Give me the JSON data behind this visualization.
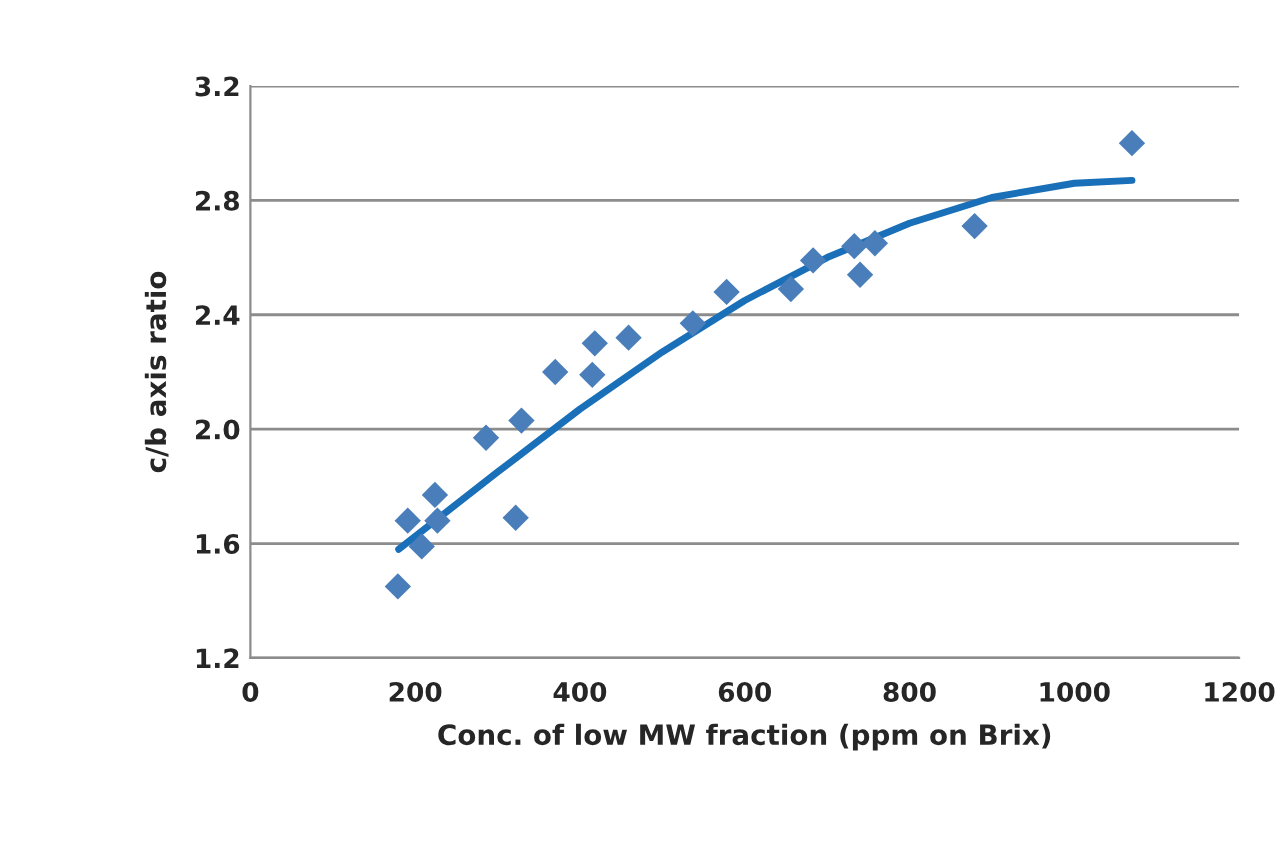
{
  "chart_data": {
    "type": "scatter",
    "xlabel": "Conc. of low MW fraction (ppm on Brix)",
    "ylabel": "c/b axis ratio",
    "series": [
      {
        "color": "#4a7ebb",
        "marker": "diamond",
        "x": [
          179,
          191,
          208,
          224,
          227,
          286,
          322,
          329,
          370,
          418,
          415,
          459,
          537,
          578,
          656,
          683,
          740,
          733,
          758,
          879,
          1070
        ],
        "values": [
          1.45,
          1.68,
          1.59,
          1.77,
          1.68,
          1.97,
          1.69,
          2.03,
          2.2,
          2.3,
          2.19,
          2.32,
          2.37,
          2.48,
          2.49,
          2.59,
          2.54,
          2.64,
          2.65,
          2.71,
          3.0
        ]
      },
      {
        "type": "line",
        "marker": "none",
        "color": "#1a70b8",
        "x": [
          180,
          300,
          400,
          500,
          600,
          700,
          800,
          900,
          1000,
          1070
        ],
        "values": [
          1.58,
          1.85,
          2.07,
          2.27,
          2.45,
          2.6,
          2.72,
          2.81,
          2.86,
          2.87
        ]
      }
    ],
    "xlim": [
      0,
      1200
    ],
    "xticks": [
      0,
      200,
      400,
      600,
      800,
      1000,
      1200
    ],
    "ylim": [
      1.2,
      3.2
    ],
    "yticks": [
      1.2,
      1.6,
      {
        "value": 2,
        "label": "2.0"
      },
      2.4,
      2.8,
      3.2
    ],
    "grid": "y"
  }
}
